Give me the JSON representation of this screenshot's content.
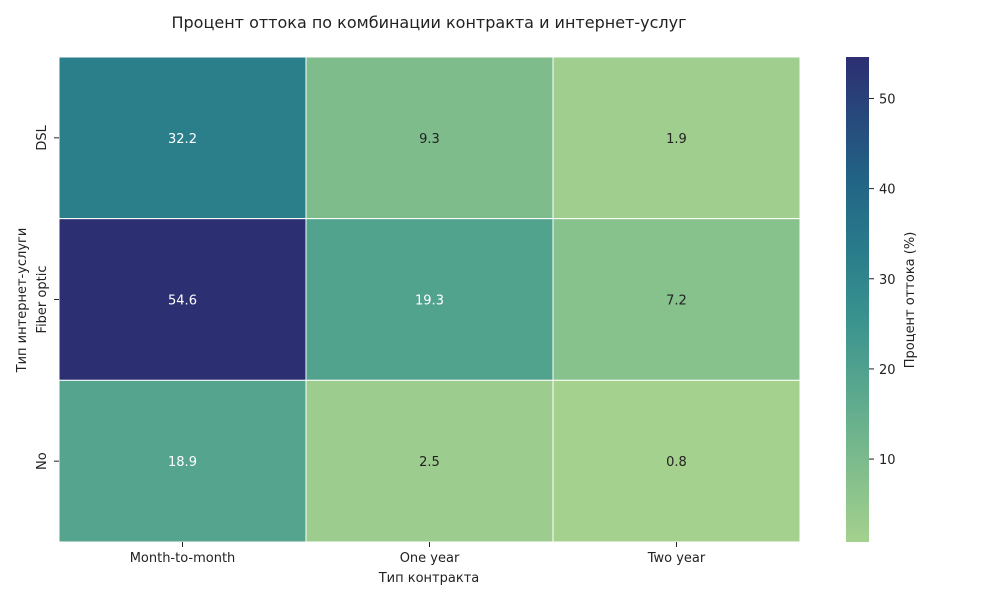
{
  "chart_data": {
    "type": "heatmap",
    "title": "Процент оттока по комбинации контракта и интернет-услуг",
    "xlabel": "Тип контракта",
    "ylabel": "Тип интернет-услуги",
    "x_categories": [
      "Month-to-month",
      "One year",
      "Two year"
    ],
    "y_categories": [
      "DSL",
      "Fiber optic",
      "No"
    ],
    "values": [
      [
        32.2,
        9.3,
        1.9
      ],
      [
        54.6,
        19.3,
        7.2
      ],
      [
        18.9,
        2.5,
        0.8
      ]
    ],
    "value_labels": [
      [
        "32.2",
        "9.3",
        "1.9"
      ],
      [
        "54.6",
        "19.3",
        "7.2"
      ],
      [
        "18.9",
        "2.5",
        "0.8"
      ]
    ],
    "colorbar": {
      "label": "Процент оттока (%)",
      "range": [
        0.8,
        54.6
      ],
      "ticks": [
        10,
        20,
        30,
        40,
        50
      ],
      "tick_labels": [
        "10",
        "20",
        "30",
        "40",
        "50"
      ]
    },
    "colormap": "crest",
    "colors": {
      "low": "#a4d18e",
      "high": "#2c2f72",
      "cell_border": "#ffffff",
      "text_dark": "#222222",
      "text_light": "#ffffff"
    }
  }
}
